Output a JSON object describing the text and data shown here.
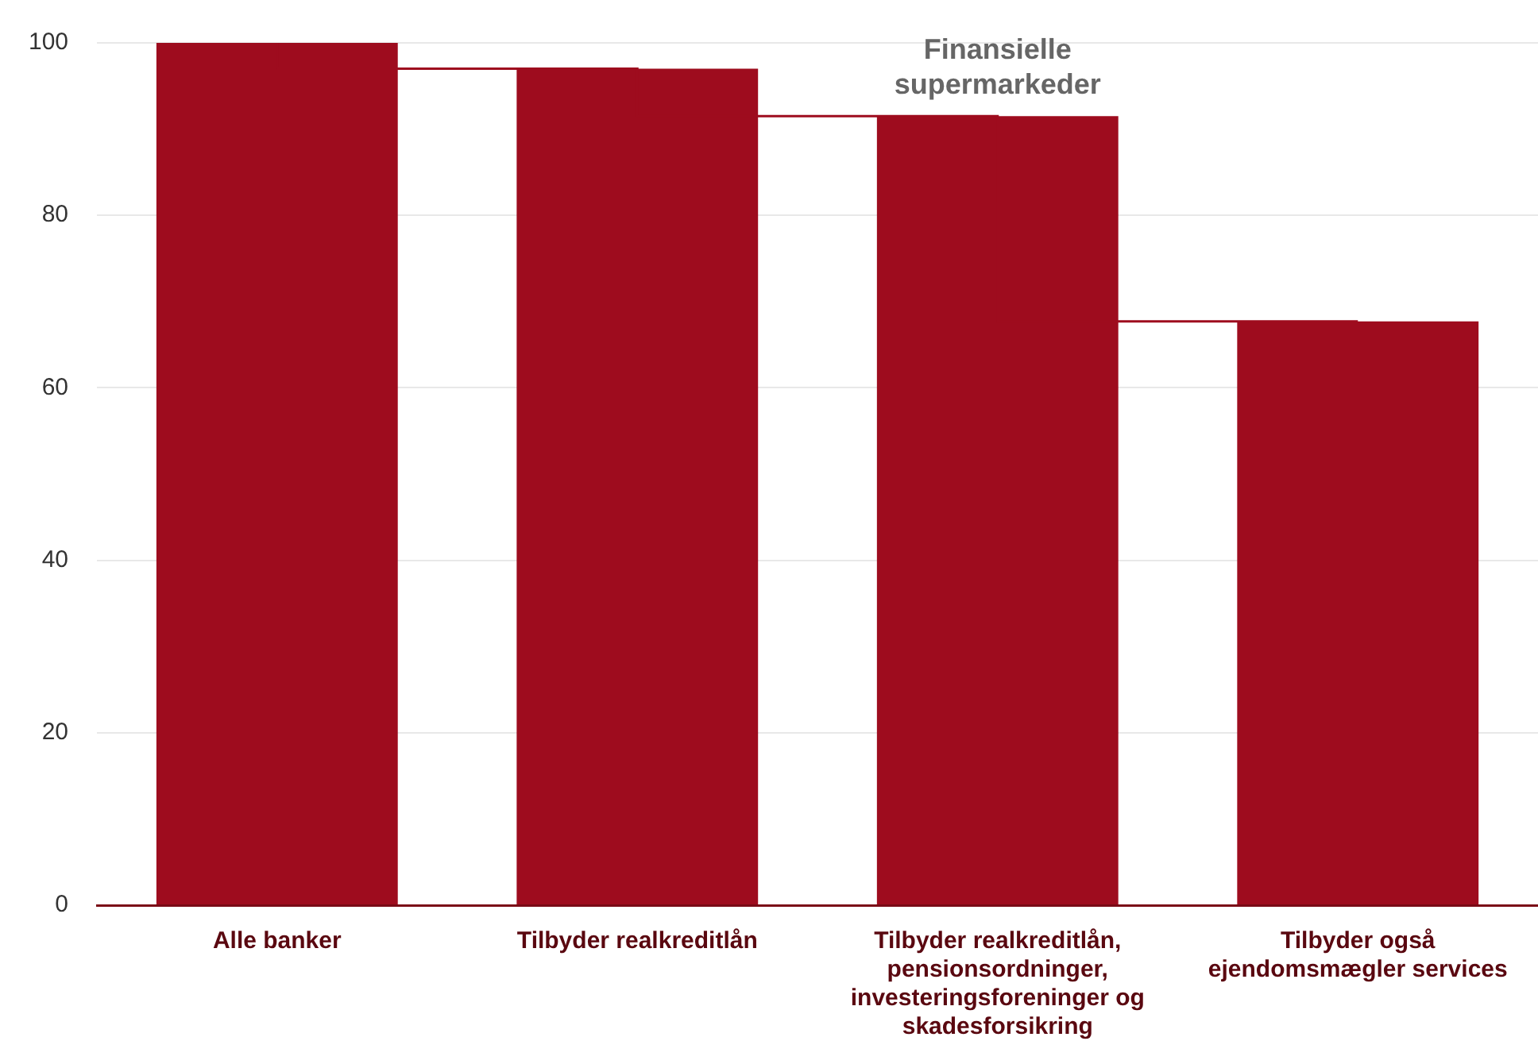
{
  "chart_data": {
    "type": "bar",
    "categories": [
      "Alle banker",
      "Tilbyder realkreditlån",
      "Tilbyder realkreditlån, pensionsordninger, investeringsforeninger og skadesforsikring",
      "Tilbyder også ejendomsmægler services"
    ],
    "series": [
      {
        "color": "#9e0c1e",
        "values": [
          100,
          97,
          91.5,
          67.7
        ]
      },
      {
        "type": "step",
        "color": "#9e0c1e",
        "values": [
          100,
          97,
          91.5,
          67.7
        ]
      }
    ],
    "ylim": [
      0,
      100
    ],
    "yticks": [
      0,
      20,
      40,
      60,
      80,
      100
    ],
    "grid": "y",
    "legend": false,
    "annotations": [
      {
        "text": "Finansielle supermarkeder",
        "x": "Tilbyder realkreditlån, pensionsordninger, investeringsforeninger og skadesforsikring",
        "y": 91.5
      }
    ]
  }
}
